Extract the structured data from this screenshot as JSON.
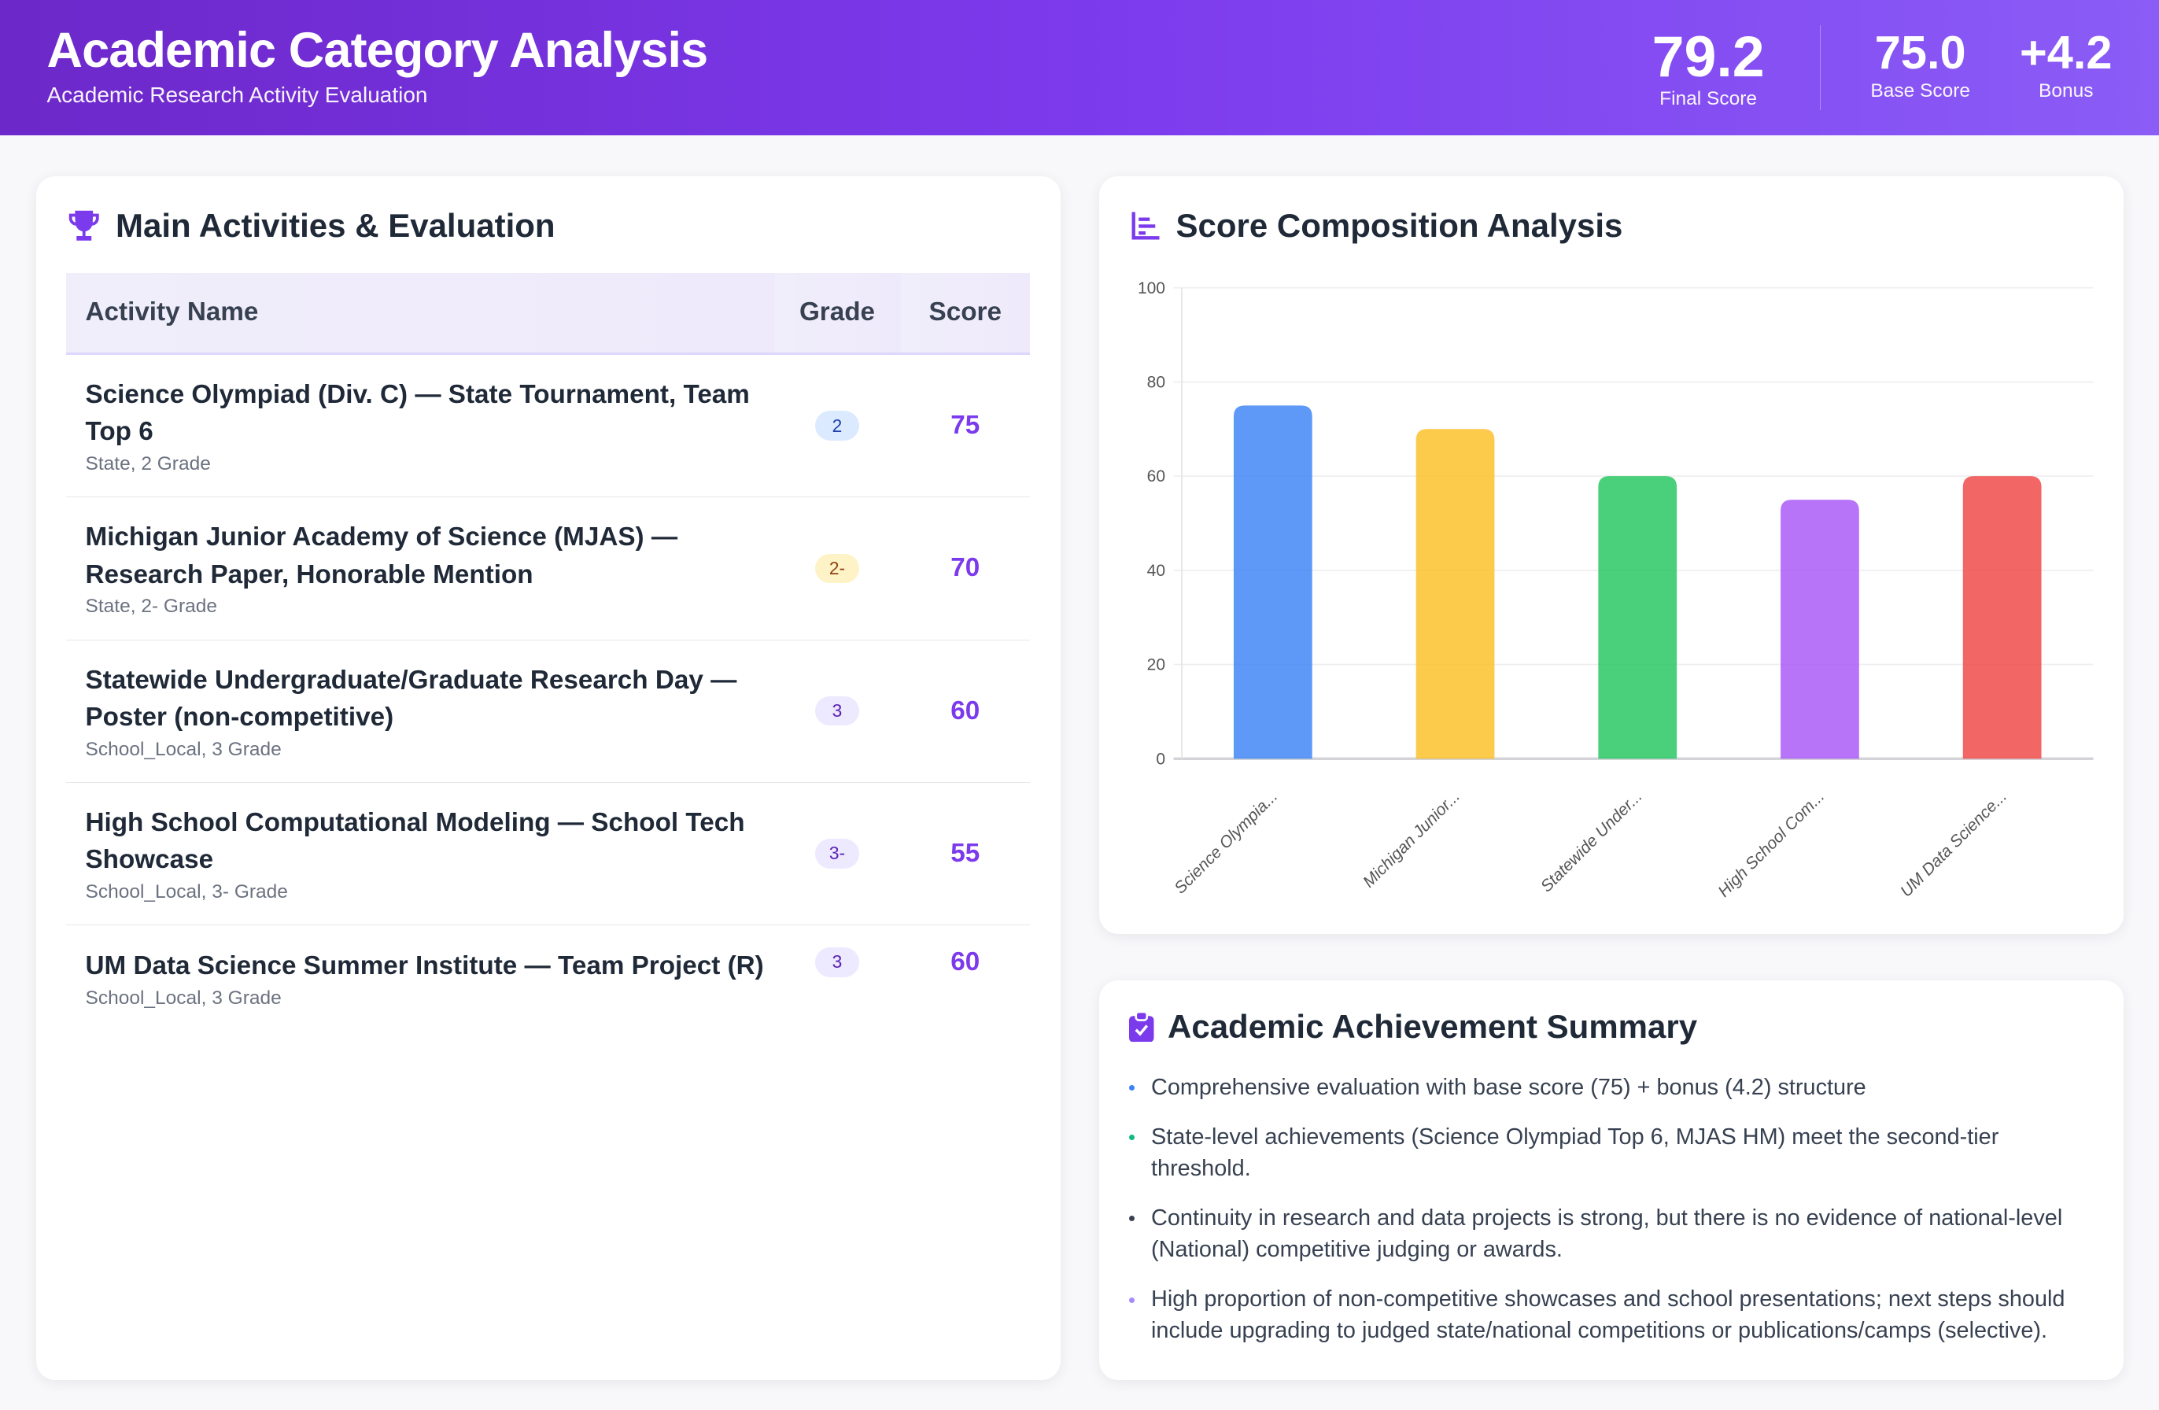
{
  "header": {
    "title": "Academic Category Analysis",
    "subtitle": "Academic Research Activity Evaluation",
    "final_score": "79.2",
    "final_label": "Final Score",
    "base_score": "75.0",
    "base_label": "Base Score",
    "bonus": "+4.2",
    "bonus_label": "Bonus"
  },
  "activities": {
    "title": "Main Activities & Evaluation",
    "icon": "trophy-icon",
    "columns": [
      "Activity Name",
      "Grade",
      "Score"
    ],
    "rows": [
      {
        "name": "Science Olympiad (Div. C) — State Tournament, Team Top 6",
        "meta": "State, 2 Grade",
        "grade": "2",
        "score": "75",
        "badge_bg": "#dbeafe",
        "badge_fg": "#1e40af"
      },
      {
        "name": "Michigan Junior Academy of Science (MJAS) — Research Paper, Honorable Mention",
        "meta": "State, 2- Grade",
        "grade": "2-",
        "score": "70",
        "badge_bg": "#fef3c7",
        "badge_fg": "#92400e"
      },
      {
        "name": "Statewide Undergraduate/Graduate Research Day — Poster (non-competitive)",
        "meta": "School_Local, 3 Grade",
        "grade": "3",
        "score": "60",
        "badge_bg": "#ede9fe",
        "badge_fg": "#5b21b6"
      },
      {
        "name": "High School Computational Modeling — School Tech Showcase",
        "meta": "School_Local, 3- Grade",
        "grade": "3-",
        "score": "55",
        "badge_bg": "#ede9fe",
        "badge_fg": "#5b21b6"
      },
      {
        "name": "UM Data Science Summer Institute — Team Project (R)",
        "meta": "School_Local, 3 Grade",
        "grade": "3",
        "score": "60",
        "badge_bg": "#ede9fe",
        "badge_fg": "#5b21b6"
      }
    ]
  },
  "chart_section": {
    "title": "Score Composition Analysis",
    "icon": "bar-chart-icon"
  },
  "chart_data": {
    "type": "bar",
    "categories": [
      "Science Olympia...",
      "Michigan Junior...",
      "Statewide Under...",
      "High School Com...",
      "UM Data Science..."
    ],
    "values": [
      75,
      70,
      60,
      55,
      60
    ],
    "colors": [
      "#3b82f6",
      "#fbbf24",
      "#22c55e",
      "#a855f7",
      "#ef4444"
    ],
    "ylim": [
      0,
      100
    ],
    "yticks": [
      0,
      20,
      40,
      60,
      80,
      100
    ],
    "grid": true
  },
  "summary": {
    "title": "Academic Achievement Summary",
    "icon": "clipboard-check-icon",
    "items": [
      {
        "text": "Comprehensive evaluation with base score (75) + bonus (4.2) structure",
        "color": "#3b82f6"
      },
      {
        "text": "State-level achievements (Science Olympiad Top 6, MJAS HM) meet the second-tier threshold.",
        "color": "#10b981"
      },
      {
        "text": "Continuity in research and data projects is strong, but there is no evidence of national-level (National) competitive judging or awards.",
        "color": "#374151"
      },
      {
        "text": "High proportion of non-competitive showcases and school presentations; next steps should include upgrading to judged state/national competitions or publications/camps (selective).",
        "color": "#a78bfa"
      }
    ]
  }
}
